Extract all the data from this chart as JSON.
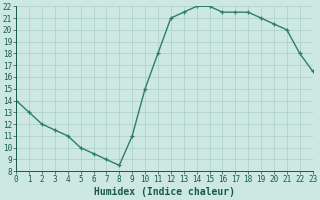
{
  "x": [
    0,
    1,
    2,
    3,
    4,
    5,
    6,
    7,
    8,
    9,
    10,
    11,
    12,
    13,
    14,
    15,
    16,
    17,
    18,
    19,
    20,
    21,
    22,
    23
  ],
  "y": [
    14,
    13,
    12,
    11.5,
    11,
    10,
    9.5,
    9,
    8.5,
    11,
    15,
    18,
    21,
    21.5,
    22,
    22,
    21.5,
    21.5,
    21.5,
    21,
    20.5,
    20,
    18,
    16.5
  ],
  "line_color": "#2e7d6e",
  "marker": "+",
  "bg_color": "#cce8e0",
  "grid_color": "#aacfc8",
  "xlabel": "Humidex (Indice chaleur)",
  "xlim": [
    0,
    23
  ],
  "ylim": [
    8,
    22
  ],
  "yticks": [
    8,
    9,
    10,
    11,
    12,
    13,
    14,
    15,
    16,
    17,
    18,
    19,
    20,
    21,
    22
  ],
  "xticks": [
    0,
    1,
    2,
    3,
    4,
    5,
    6,
    7,
    8,
    9,
    10,
    11,
    12,
    13,
    14,
    15,
    16,
    17,
    18,
    19,
    20,
    21,
    22,
    23
  ],
  "font_color": "#1a5a4a",
  "xlabel_fontsize": 7,
  "tick_fontsize": 5.5,
  "linewidth": 1.0,
  "markersize": 3.5,
  "markeredgewidth": 0.9
}
